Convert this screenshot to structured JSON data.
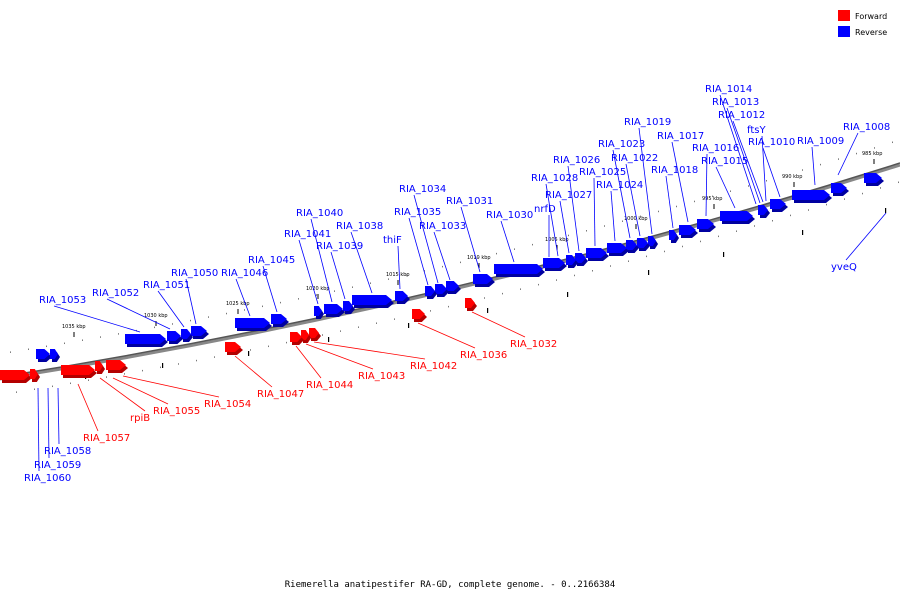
{
  "caption": "Riemerella anatipestifer RA-GD, complete genome. - 0..2166384",
  "legend": [
    {
      "label": "Forward",
      "color": "#ff0000"
    },
    {
      "label": "Reverse",
      "color": "#0000ff"
    }
  ],
  "colors": {
    "forward": "#ff0000",
    "reverse": "#0000ff",
    "forward_dark": "#b40000",
    "reverse_dark": "#0000a0"
  },
  "ticks": [
    "985 kbp",
    "990 kbp",
    "995 kbp",
    "1000 kbp",
    "1005 kbp",
    "1010 kbp",
    "1015 kbp",
    "1020 kbp",
    "1025 kbp",
    "1030 kbp",
    "1035 kbp"
  ],
  "reverse_genes": [
    "RIA_1008",
    "RIA_1009",
    "RIA_1010",
    "ftsY",
    "RIA_1012",
    "RIA_1013",
    "RIA_1014",
    "RIA_1015",
    "RIA_1016",
    "RIA_1017",
    "RIA_1018",
    "RIA_1019",
    "RIA_1022",
    "RIA_1023",
    "RIA_1024",
    "RIA_1025",
    "RIA_1026",
    "RIA_1027",
    "RIA_1028",
    "nrfD",
    "RIA_1030",
    "RIA_1031",
    "RIA_1033",
    "RIA_1034",
    "RIA_1035",
    "thiF",
    "RIA_1038",
    "RIA_1039",
    "RIA_1040",
    "RIA_1041",
    "RIA_1045",
    "RIA_1046",
    "RIA_1050",
    "RIA_1051",
    "RIA_1052",
    "RIA_1053",
    "RIA_1058",
    "RIA_1059",
    "RIA_1060",
    "yveQ"
  ],
  "forward_genes": [
    "RIA_1032",
    "RIA_1036",
    "RIA_1042",
    "RIA_1043",
    "RIA_1044",
    "RIA_1047",
    "RIA_1054",
    "RIA_1055",
    "rpiB",
    "RIA_1057"
  ]
}
